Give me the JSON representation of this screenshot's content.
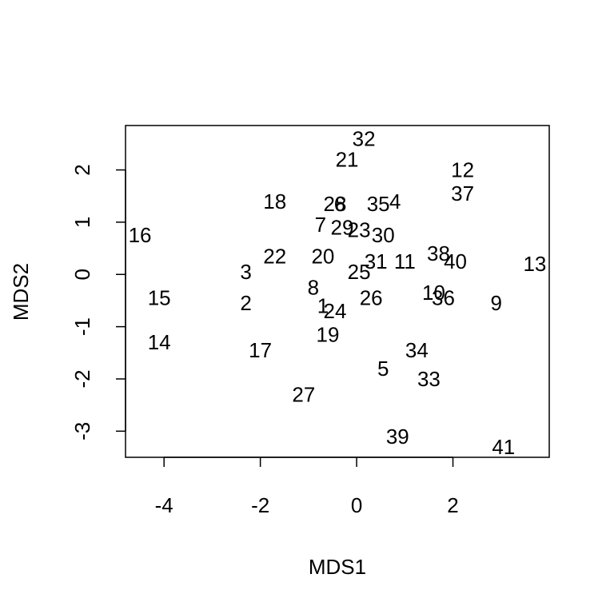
{
  "chart_data": {
    "type": "scatter",
    "title": "",
    "xlabel": "MDS1",
    "ylabel": "MDS2",
    "xlim": [
      -4.8,
      4.0
    ],
    "ylim": [
      -3.5,
      2.85
    ],
    "xticks": [
      -4,
      -2,
      0,
      2
    ],
    "xtick_labels": [
      "-4",
      "-2",
      "0",
      "2"
    ],
    "yticks": [
      -3,
      -2,
      -1,
      0,
      1,
      2
    ],
    "ytick_labels": [
      "-3",
      "-2",
      "-1",
      "0",
      "1",
      "2"
    ],
    "grid": false,
    "marker": "text-label",
    "points": [
      {
        "label": "1",
        "x": -0.7,
        "y": -0.6
      },
      {
        "label": "2",
        "x": -2.3,
        "y": -0.55
      },
      {
        "label": "3",
        "x": -2.3,
        "y": 0.05
      },
      {
        "label": "4",
        "x": 0.8,
        "y": 1.4
      },
      {
        "label": "5",
        "x": 0.55,
        "y": -1.8
      },
      {
        "label": "6",
        "x": -0.35,
        "y": 1.35
      },
      {
        "label": "7",
        "x": -0.75,
        "y": 0.95
      },
      {
        "label": "8",
        "x": -0.9,
        "y": -0.25
      },
      {
        "label": "9",
        "x": 2.9,
        "y": -0.55
      },
      {
        "label": "10",
        "x": 1.6,
        "y": -0.35
      },
      {
        "label": "11",
        "x": 1.0,
        "y": 0.25
      },
      {
        "label": "12",
        "x": 2.2,
        "y": 2.0
      },
      {
        "label": "13",
        "x": 3.7,
        "y": 0.2
      },
      {
        "label": "14",
        "x": -4.1,
        "y": -1.3
      },
      {
        "label": "15",
        "x": -4.1,
        "y": -0.45
      },
      {
        "label": "16",
        "x": -4.5,
        "y": 0.75
      },
      {
        "label": "17",
        "x": -2.0,
        "y": -1.45
      },
      {
        "label": "18",
        "x": -1.7,
        "y": 1.4
      },
      {
        "label": "19",
        "x": -0.6,
        "y": -1.15
      },
      {
        "label": "20",
        "x": -0.7,
        "y": 0.35
      },
      {
        "label": "21",
        "x": -0.2,
        "y": 2.2
      },
      {
        "label": "22",
        "x": -1.7,
        "y": 0.35
      },
      {
        "label": "23",
        "x": 0.05,
        "y": 0.85
      },
      {
        "label": "24",
        "x": -0.45,
        "y": -0.7
      },
      {
        "label": "25",
        "x": 0.05,
        "y": 0.05
      },
      {
        "label": "26",
        "x": 0.3,
        "y": -0.45
      },
      {
        "label": "27",
        "x": -1.1,
        "y": -2.3
      },
      {
        "label": "28",
        "x": -0.45,
        "y": 1.35
      },
      {
        "label": "29",
        "x": -0.3,
        "y": 0.9
      },
      {
        "label": "30",
        "x": 0.55,
        "y": 0.75
      },
      {
        "label": "31",
        "x": 0.4,
        "y": 0.25
      },
      {
        "label": "32",
        "x": 0.15,
        "y": 2.6
      },
      {
        "label": "33",
        "x": 1.5,
        "y": -2.0
      },
      {
        "label": "34",
        "x": 1.25,
        "y": -1.45
      },
      {
        "label": "35",
        "x": 0.45,
        "y": 1.35
      },
      {
        "label": "36",
        "x": 1.8,
        "y": -0.45
      },
      {
        "label": "37",
        "x": 2.2,
        "y": 1.55
      },
      {
        "label": "38",
        "x": 1.7,
        "y": 0.4
      },
      {
        "label": "39",
        "x": 0.85,
        "y": -3.1
      },
      {
        "label": "40",
        "x": 2.05,
        "y": 0.25
      },
      {
        "label": "41",
        "x": 3.05,
        "y": -3.3
      }
    ]
  }
}
